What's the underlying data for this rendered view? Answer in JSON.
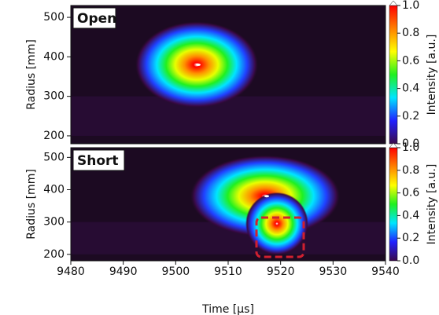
{
  "chart_data": [
    {
      "type": "heatmap",
      "label": "Open",
      "ylabel": "Radius [mm]",
      "xlim": [
        9480,
        9540
      ],
      "ylim": [
        180,
        530
      ],
      "yticks": [
        200,
        300,
        400,
        500
      ],
      "colormap": [
        "#3a0a4a",
        "#2020ff",
        "#00e5ff",
        "#20f020",
        "#ffff00",
        "#ff8000",
        "#ff0000"
      ],
      "colorbar": {
        "label": "Intensity [a.u.]",
        "lim": [
          0,
          1
        ],
        "ticks": [
          {
            "value": 0,
            "label": "0.0"
          },
          0.2,
          0.4,
          0.6,
          0.8,
          {
            "value": 1,
            "label": "1.0"
          }
        ]
      }
    },
    {
      "type": "heatmap",
      "label": "Short",
      "ylabel": "Radius [mm]",
      "xlabel": "Time [μs]",
      "xlim": [
        9480,
        9540
      ],
      "xticks": [
        9480,
        9490,
        9500,
        9510,
        9520,
        9530,
        9540
      ],
      "ylim": [
        180,
        530
      ],
      "yticks": [
        200,
        300,
        400,
        500
      ],
      "colormap": [
        "#3a0a4a",
        "#2020ff",
        "#00e5ff",
        "#20f020",
        "#ffff00",
        "#ff8000",
        "#ff0000"
      ],
      "colorbar": {
        "label": "Intensity [a.u.]",
        "lim": [
          0,
          1
        ],
        "ticks": [
          {
            "value": 0,
            "label": "0.0"
          },
          0.2,
          0.4,
          0.6,
          0.8,
          {
            "value": 1,
            "label": "1.0"
          }
        ]
      }
    }
  ]
}
